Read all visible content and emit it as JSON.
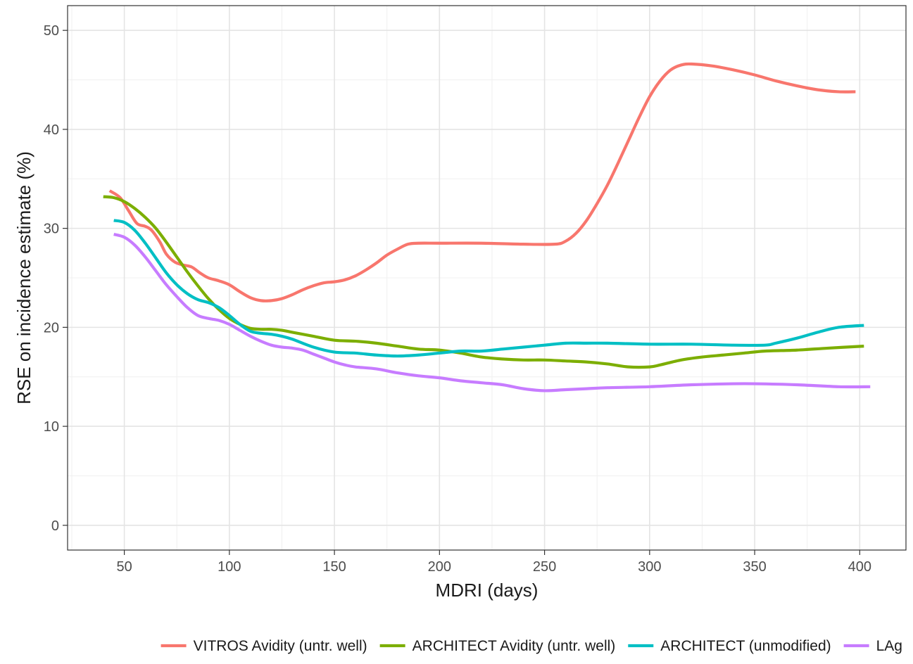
{
  "chart_data": {
    "type": "line",
    "xlabel": "MDRI (days)",
    "ylabel": "RSE on incidence estimate (%)",
    "xlim": [
      23,
      422
    ],
    "ylim": [
      -2.5,
      52.5
    ],
    "x_ticks": [
      50,
      100,
      150,
      200,
      250,
      300,
      350,
      400
    ],
    "y_ticks": [
      0,
      10,
      20,
      30,
      40,
      50
    ],
    "grid": true,
    "legend_position": "bottom",
    "series": [
      {
        "name": "VITROS Avidity (untr. well)",
        "color": "#F8766D",
        "points": [
          [
            43,
            33.8
          ],
          [
            48,
            33.1
          ],
          [
            52,
            31.8
          ],
          [
            56,
            30.5
          ],
          [
            60,
            30.2
          ],
          [
            63,
            29.8
          ],
          [
            67,
            28.6
          ],
          [
            70,
            27.4
          ],
          [
            74,
            26.6
          ],
          [
            78,
            26.3
          ],
          [
            82,
            26.1
          ],
          [
            86,
            25.5
          ],
          [
            90,
            25.0
          ],
          [
            95,
            24.7
          ],
          [
            100,
            24.3
          ],
          [
            105,
            23.6
          ],
          [
            110,
            23.0
          ],
          [
            115,
            22.7
          ],
          [
            120,
            22.7
          ],
          [
            125,
            22.9
          ],
          [
            130,
            23.3
          ],
          [
            135,
            23.8
          ],
          [
            140,
            24.2
          ],
          [
            145,
            24.5
          ],
          [
            150,
            24.6
          ],
          [
            155,
            24.8
          ],
          [
            160,
            25.2
          ],
          [
            165,
            25.8
          ],
          [
            170,
            26.5
          ],
          [
            175,
            27.3
          ],
          [
            180,
            27.9
          ],
          [
            185,
            28.4
          ],
          [
            190,
            28.5
          ],
          [
            200,
            28.5
          ],
          [
            220,
            28.5
          ],
          [
            240,
            28.4
          ],
          [
            255,
            28.4
          ],
          [
            260,
            28.7
          ],
          [
            265,
            29.5
          ],
          [
            270,
            30.8
          ],
          [
            275,
            32.5
          ],
          [
            280,
            34.4
          ],
          [
            285,
            36.6
          ],
          [
            290,
            38.9
          ],
          [
            295,
            41.2
          ],
          [
            300,
            43.3
          ],
          [
            305,
            44.9
          ],
          [
            310,
            46.0
          ],
          [
            315,
            46.5
          ],
          [
            320,
            46.6
          ],
          [
            330,
            46.4
          ],
          [
            340,
            46.0
          ],
          [
            350,
            45.5
          ],
          [
            360,
            44.9
          ],
          [
            370,
            44.4
          ],
          [
            380,
            44.0
          ],
          [
            390,
            43.8
          ],
          [
            398,
            43.8
          ]
        ]
      },
      {
        "name": "ARCHITECT Avidity (untr. well)",
        "color": "#7CAE00",
        "points": [
          [
            40,
            33.2
          ],
          [
            45,
            33.1
          ],
          [
            50,
            32.7
          ],
          [
            55,
            32.0
          ],
          [
            60,
            31.1
          ],
          [
            65,
            30.0
          ],
          [
            70,
            28.6
          ],
          [
            75,
            27.1
          ],
          [
            80,
            25.6
          ],
          [
            85,
            24.2
          ],
          [
            90,
            22.9
          ],
          [
            95,
            21.8
          ],
          [
            100,
            20.9
          ],
          [
            105,
            20.3
          ],
          [
            110,
            19.9
          ],
          [
            115,
            19.8
          ],
          [
            120,
            19.8
          ],
          [
            125,
            19.7
          ],
          [
            130,
            19.5
          ],
          [
            140,
            19.1
          ],
          [
            150,
            18.7
          ],
          [
            160,
            18.6
          ],
          [
            170,
            18.4
          ],
          [
            180,
            18.1
          ],
          [
            190,
            17.8
          ],
          [
            200,
            17.7
          ],
          [
            210,
            17.4
          ],
          [
            220,
            17.0
          ],
          [
            230,
            16.8
          ],
          [
            240,
            16.7
          ],
          [
            250,
            16.7
          ],
          [
            260,
            16.6
          ],
          [
            270,
            16.5
          ],
          [
            280,
            16.3
          ],
          [
            290,
            16.0
          ],
          [
            300,
            16.0
          ],
          [
            305,
            16.2
          ],
          [
            315,
            16.7
          ],
          [
            325,
            17.0
          ],
          [
            335,
            17.2
          ],
          [
            345,
            17.4
          ],
          [
            355,
            17.6
          ],
          [
            370,
            17.7
          ],
          [
            385,
            17.9
          ],
          [
            402,
            18.1
          ]
        ]
      },
      {
        "name": "ARCHITECT (unmodified)",
        "color": "#00BFC4",
        "points": [
          [
            45,
            30.8
          ],
          [
            50,
            30.6
          ],
          [
            55,
            29.8
          ],
          [
            60,
            28.5
          ],
          [
            65,
            27.0
          ],
          [
            70,
            25.5
          ],
          [
            75,
            24.3
          ],
          [
            80,
            23.4
          ],
          [
            85,
            22.8
          ],
          [
            90,
            22.5
          ],
          [
            95,
            22.0
          ],
          [
            100,
            21.2
          ],
          [
            105,
            20.3
          ],
          [
            110,
            19.6
          ],
          [
            115,
            19.4
          ],
          [
            120,
            19.3
          ],
          [
            125,
            19.1
          ],
          [
            130,
            18.8
          ],
          [
            140,
            18.0
          ],
          [
            150,
            17.5
          ],
          [
            160,
            17.4
          ],
          [
            170,
            17.2
          ],
          [
            180,
            17.1
          ],
          [
            190,
            17.2
          ],
          [
            200,
            17.4
          ],
          [
            210,
            17.6
          ],
          [
            220,
            17.6
          ],
          [
            230,
            17.8
          ],
          [
            240,
            18.0
          ],
          [
            250,
            18.2
          ],
          [
            260,
            18.4
          ],
          [
            270,
            18.4
          ],
          [
            280,
            18.4
          ],
          [
            300,
            18.3
          ],
          [
            320,
            18.3
          ],
          [
            340,
            18.2
          ],
          [
            355,
            18.2
          ],
          [
            360,
            18.4
          ],
          [
            370,
            18.9
          ],
          [
            380,
            19.5
          ],
          [
            390,
            20.0
          ],
          [
            402,
            20.2
          ]
        ]
      },
      {
        "name": "LAg",
        "color": "#C77CFF",
        "points": [
          [
            45,
            29.4
          ],
          [
            50,
            29.1
          ],
          [
            55,
            28.3
          ],
          [
            60,
            27.1
          ],
          [
            65,
            25.7
          ],
          [
            70,
            24.3
          ],
          [
            75,
            23.1
          ],
          [
            80,
            22.0
          ],
          [
            85,
            21.2
          ],
          [
            90,
            20.9
          ],
          [
            95,
            20.7
          ],
          [
            100,
            20.3
          ],
          [
            105,
            19.7
          ],
          [
            110,
            19.1
          ],
          [
            115,
            18.6
          ],
          [
            120,
            18.2
          ],
          [
            125,
            18.0
          ],
          [
            130,
            17.9
          ],
          [
            135,
            17.7
          ],
          [
            140,
            17.3
          ],
          [
            145,
            16.9
          ],
          [
            150,
            16.5
          ],
          [
            155,
            16.2
          ],
          [
            160,
            16.0
          ],
          [
            170,
            15.8
          ],
          [
            180,
            15.4
          ],
          [
            190,
            15.1
          ],
          [
            200,
            14.9
          ],
          [
            210,
            14.6
          ],
          [
            220,
            14.4
          ],
          [
            230,
            14.2
          ],
          [
            240,
            13.8
          ],
          [
            250,
            13.6
          ],
          [
            260,
            13.7
          ],
          [
            270,
            13.8
          ],
          [
            280,
            13.9
          ],
          [
            300,
            14.0
          ],
          [
            320,
            14.2
          ],
          [
            340,
            14.3
          ],
          [
            350,
            14.3
          ],
          [
            370,
            14.2
          ],
          [
            390,
            14.0
          ],
          [
            405,
            14.0
          ]
        ]
      }
    ]
  }
}
